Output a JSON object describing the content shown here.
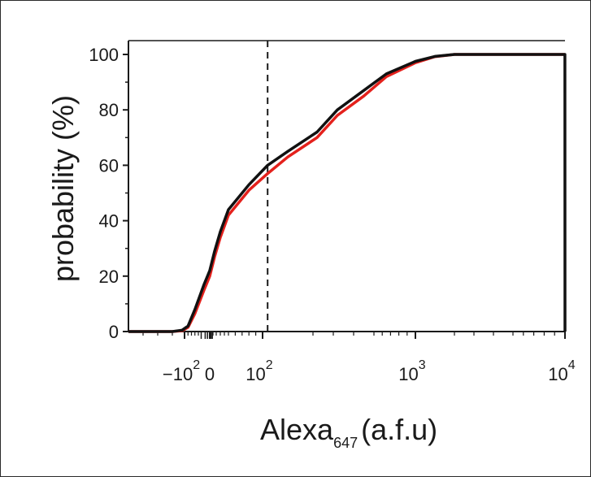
{
  "chart_data": {
    "type": "line",
    "title": "",
    "ylabel": "probability (%)",
    "xlabel": "Alexa",
    "xlabel_subscript": "647",
    "xlabel_units": "(a.f.u)",
    "x_scale": "logicle (biexponential)",
    "xlim": [
      -500,
      10000
    ],
    "ylim": [
      0,
      100
    ],
    "grid": false,
    "legend": "none",
    "y_ticks": [
      {
        "value": 0,
        "label": "0"
      },
      {
        "value": 20,
        "label": "20"
      },
      {
        "value": 40,
        "label": "40"
      },
      {
        "value": 60,
        "label": "60"
      },
      {
        "value": 80,
        "label": "80"
      },
      {
        "value": 100,
        "label": "100"
      }
    ],
    "x_ticks": [
      {
        "value": -100,
        "label": "−10",
        "exp": "2"
      },
      {
        "value": 0,
        "label": "0",
        "exp": ""
      },
      {
        "value": 100,
        "label": "10",
        "exp": "2"
      },
      {
        "value": 1000,
        "label": "10",
        "exp": "3"
      },
      {
        "value": 10000,
        "label": "10",
        "exp": "4"
      }
    ],
    "threshold_line": {
      "x": 110,
      "style": "dashed",
      "color": "#1a1a1a"
    },
    "series": [
      {
        "color": "#111111",
        "points": [
          [
            -500,
            0
          ],
          [
            -200,
            0
          ],
          [
            -120,
            0.5
          ],
          [
            -80,
            2
          ],
          [
            -40,
            8
          ],
          [
            -10,
            17
          ],
          [
            0,
            22
          ],
          [
            15,
            29
          ],
          [
            30,
            36
          ],
          [
            50,
            44
          ],
          [
            80,
            53
          ],
          [
            110,
            60
          ],
          [
            150,
            65
          ],
          [
            220,
            72
          ],
          [
            320,
            80
          ],
          [
            450,
            87
          ],
          [
            650,
            93
          ],
          [
            1000,
            97.5
          ],
          [
            1500,
            99.3
          ],
          [
            2000,
            100
          ],
          [
            9990,
            100
          ],
          [
            10000,
            0
          ]
        ]
      },
      {
        "color": "#e4211c",
        "points": [
          [
            -500,
            0
          ],
          [
            -200,
            0
          ],
          [
            -120,
            0.3
          ],
          [
            -80,
            1.5
          ],
          [
            -40,
            6.5
          ],
          [
            -10,
            15
          ],
          [
            0,
            20
          ],
          [
            15,
            27
          ],
          [
            30,
            34
          ],
          [
            50,
            42
          ],
          [
            80,
            51
          ],
          [
            110,
            57
          ],
          [
            150,
            63
          ],
          [
            220,
            70
          ],
          [
            320,
            78
          ],
          [
            450,
            85
          ],
          [
            650,
            92
          ],
          [
            1000,
            97
          ],
          [
            1500,
            99.2
          ],
          [
            2000,
            100
          ],
          [
            9990,
            100
          ]
        ]
      }
    ]
  }
}
